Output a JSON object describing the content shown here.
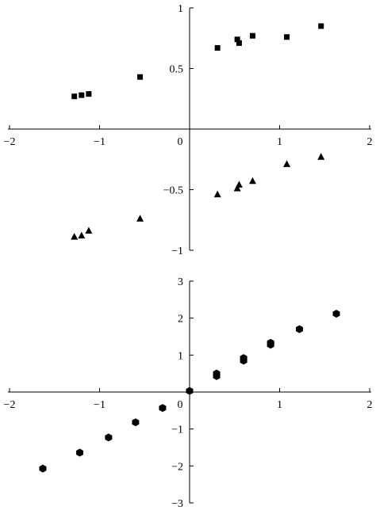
{
  "chart_data": [
    {
      "type": "scatter",
      "xlim": [
        -2,
        2
      ],
      "ylim": [
        -1,
        1
      ],
      "x_ticks": [
        -2,
        -1,
        0,
        1,
        2
      ],
      "x_tick_labels": [
        "−2",
        "−1",
        "0",
        "1",
        "2"
      ],
      "y_ticks": [
        -1,
        -0.5,
        0.5,
        1
      ],
      "y_tick_labels": [
        "−1",
        "−0.5",
        "0.5",
        "1"
      ],
      "grid": false,
      "series": [
        {
          "marker": "square",
          "points": [
            [
              -1.28,
              0.27
            ],
            [
              -1.2,
              0.28
            ],
            [
              -1.12,
              0.29
            ],
            [
              -0.55,
              0.43
            ],
            [
              0.31,
              0.67
            ],
            [
              0.53,
              0.74
            ],
            [
              0.55,
              0.71
            ],
            [
              0.7,
              0.77
            ],
            [
              1.08,
              0.76
            ],
            [
              1.46,
              0.85
            ]
          ]
        },
        {
          "marker": "triangle",
          "points": [
            [
              -1.28,
              -0.89
            ],
            [
              -1.2,
              -0.88
            ],
            [
              -1.12,
              -0.84
            ],
            [
              -0.55,
              -0.74
            ],
            [
              0.31,
              -0.54
            ],
            [
              0.53,
              -0.49
            ],
            [
              0.55,
              -0.46
            ],
            [
              0.7,
              -0.43
            ],
            [
              1.08,
              -0.29
            ],
            [
              1.46,
              -0.23
            ]
          ]
        }
      ]
    },
    {
      "type": "scatter",
      "xlim": [
        -2,
        2
      ],
      "ylim": [
        -3,
        3
      ],
      "x_ticks": [
        -2,
        -1,
        0,
        1,
        2
      ],
      "x_tick_labels": [
        "−2",
        "−1",
        "0",
        "1",
        "2"
      ],
      "y_ticks": [
        -3,
        -2,
        -1,
        1,
        2,
        3
      ],
      "y_tick_labels": [
        "−3",
        "−2",
        "−1",
        "1",
        "2",
        "3"
      ],
      "grid": false,
      "series": [
        {
          "marker": "hexagon",
          "points": [
            [
              -1.63,
              -2.07
            ],
            [
              -1.22,
              -1.64
            ],
            [
              -0.9,
              -1.23
            ],
            [
              -0.6,
              -0.82
            ],
            [
              -0.3,
              -0.43
            ],
            [
              0.0,
              0.03
            ],
            [
              0.3,
              0.43
            ],
            [
              0.3,
              0.5
            ],
            [
              0.6,
              0.85
            ],
            [
              0.6,
              0.92
            ],
            [
              0.9,
              1.28
            ],
            [
              0.9,
              1.33
            ],
            [
              1.22,
              1.7
            ],
            [
              1.63,
              2.12
            ]
          ]
        }
      ]
    }
  ]
}
